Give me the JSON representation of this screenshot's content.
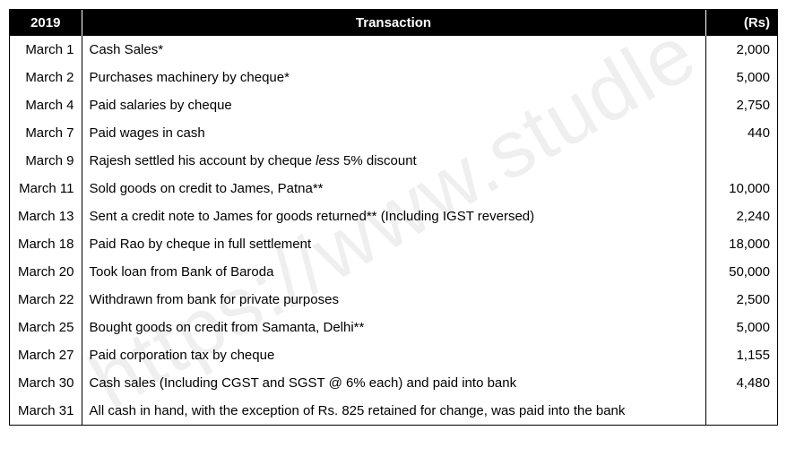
{
  "watermark": "https://www.studle",
  "table": {
    "headers": {
      "year": "2019",
      "transaction": "Transaction",
      "amount": "(Rs)"
    },
    "rows": [
      {
        "date": "March 1",
        "transaction": "Cash Sales*",
        "amount": "2,000"
      },
      {
        "date": "March 2",
        "transaction": "Purchases machinery by cheque*",
        "amount": "5,000"
      },
      {
        "date": "March 4",
        "transaction": "Paid salaries by cheque",
        "amount": "2,750"
      },
      {
        "date": "March 7",
        "transaction": "Paid wages in cash",
        "amount": "440"
      },
      {
        "date": "March 9",
        "transaction_parts": [
          {
            "text": "Rajesh settled his account by cheque "
          },
          {
            "text": "less",
            "italic": true
          },
          {
            "text": " 5% discount"
          }
        ],
        "amount": ""
      },
      {
        "date": "March 11",
        "transaction": "Sold goods on credit to James, Patna**",
        "amount": "10,000"
      },
      {
        "date": "March 13",
        "transaction": "Sent a credit note to James for goods returned** (Including IGST reversed)",
        "amount": "2,240"
      },
      {
        "date": "March 18",
        "transaction": "Paid Rao by cheque in full settlement",
        "amount": "18,000"
      },
      {
        "date": "March 20",
        "transaction": "Took loan from Bank of Baroda",
        "amount": "50,000"
      },
      {
        "date": "March 22",
        "transaction": "Withdrawn from bank for private purposes",
        "amount": "2,500"
      },
      {
        "date": "March 25",
        "transaction": "Bought goods on credit from Samanta, Delhi**",
        "amount": "5,000"
      },
      {
        "date": "March 27",
        "transaction": "Paid corporation tax by cheque",
        "amount": "1,155"
      },
      {
        "date": "March 30",
        "transaction": "Cash sales (Including CGST and SGST @ 6% each) and paid into bank",
        "amount": "4,480"
      },
      {
        "date": "March 31",
        "transaction": "All cash in hand, with the exception of Rs. 825 retained for change, was paid into the bank",
        "amount": ""
      }
    ],
    "colors": {
      "header_bg": "#000000",
      "header_text": "#ffffff",
      "border": "#000000",
      "body_text": "#000000",
      "background": "#ffffff"
    },
    "font_sizes": {
      "header": 15,
      "body": 15
    }
  }
}
